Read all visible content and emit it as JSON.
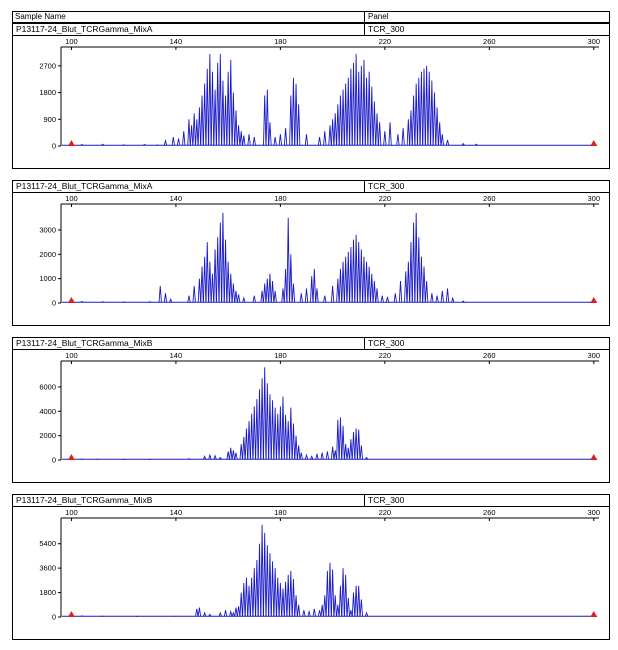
{
  "header": {
    "sample_col": "Sample Name",
    "panel_col": "Panel"
  },
  "colors": {
    "trace": "#1a1ac8",
    "marker": "#e02020",
    "axis": "#000000"
  },
  "chart_data": [
    {
      "type": "line",
      "sample": "P13117-24_Blut_TCRGamma_MixA",
      "panel": "TCR_300",
      "x_ticks": [
        100,
        140,
        180,
        220,
        260,
        300
      ],
      "y_ticks": [
        0,
        900,
        1800,
        2700
      ],
      "xlim": [
        96,
        302
      ],
      "ylim": [
        0,
        3200
      ],
      "size_markers": [
        100,
        300
      ],
      "peaks": [
        [
          104,
          50
        ],
        [
          112,
          60
        ],
        [
          120,
          40
        ],
        [
          128,
          50
        ],
        [
          133,
          30
        ],
        [
          136,
          180
        ],
        [
          139,
          300
        ],
        [
          141,
          250
        ],
        [
          143,
          500
        ],
        [
          145,
          900
        ],
        [
          146,
          700
        ],
        [
          147,
          1100
        ],
        [
          148,
          900
        ],
        [
          149,
          1300
        ],
        [
          150,
          1700
        ],
        [
          151,
          2100
        ],
        [
          152,
          2600
        ],
        [
          153,
          3100
        ],
        [
          154,
          2500
        ],
        [
          155,
          1900
        ],
        [
          156,
          2800
        ],
        [
          157,
          3100
        ],
        [
          158,
          2200
        ],
        [
          159,
          1700
        ],
        [
          160,
          2500
        ],
        [
          161,
          2900
        ],
        [
          162,
          1800
        ],
        [
          163,
          1200
        ],
        [
          164,
          700
        ],
        [
          165,
          500
        ],
        [
          166,
          350
        ],
        [
          168,
          400
        ],
        [
          170,
          300
        ],
        [
          174,
          1700
        ],
        [
          175,
          1900
        ],
        [
          176,
          800
        ],
        [
          178,
          300
        ],
        [
          180,
          400
        ],
        [
          182,
          600
        ],
        [
          184,
          1700
        ],
        [
          185,
          2300
        ],
        [
          186,
          2100
        ],
        [
          187,
          1400
        ],
        [
          190,
          400
        ],
        [
          195,
          300
        ],
        [
          197,
          500
        ],
        [
          199,
          700
        ],
        [
          200,
          900
        ],
        [
          201,
          1100
        ],
        [
          202,
          1400
        ],
        [
          203,
          1700
        ],
        [
          204,
          1900
        ],
        [
          205,
          2100
        ],
        [
          206,
          2300
        ],
        [
          207,
          2600
        ],
        [
          208,
          2800
        ],
        [
          209,
          3100
        ],
        [
          210,
          2500
        ],
        [
          211,
          2700
        ],
        [
          212,
          2900
        ],
        [
          213,
          2300
        ],
        [
          214,
          2500
        ],
        [
          215,
          2000
        ],
        [
          216,
          1500
        ],
        [
          217,
          1100
        ],
        [
          218,
          800
        ],
        [
          220,
          500
        ],
        [
          222,
          800
        ],
        [
          225,
          400
        ],
        [
          227,
          600
        ],
        [
          229,
          900
        ],
        [
          230,
          1200
        ],
        [
          231,
          1700
        ],
        [
          232,
          2100
        ],
        [
          233,
          2300
        ],
        [
          234,
          2500
        ],
        [
          235,
          2600
        ],
        [
          236,
          2700
        ],
        [
          237,
          2500
        ],
        [
          238,
          2200
        ],
        [
          239,
          1800
        ],
        [
          240,
          1300
        ],
        [
          241,
          800
        ],
        [
          242,
          400
        ],
        [
          244,
          200
        ],
        [
          250,
          80
        ],
        [
          255,
          60
        ]
      ]
    },
    {
      "type": "line",
      "sample": "P13117-24_Blut_TCRGamma_MixA",
      "panel": "TCR_300",
      "x_ticks": [
        100,
        140,
        180,
        220,
        260,
        300
      ],
      "y_ticks": [
        0,
        1000,
        2000,
        3000
      ],
      "xlim": [
        96,
        302
      ],
      "ylim": [
        0,
        3900
      ],
      "size_markers": [
        100,
        300
      ],
      "peaks": [
        [
          104,
          60
        ],
        [
          112,
          50
        ],
        [
          120,
          40
        ],
        [
          130,
          50
        ],
        [
          134,
          700
        ],
        [
          136,
          400
        ],
        [
          138,
          150
        ],
        [
          145,
          300
        ],
        [
          147,
          700
        ],
        [
          149,
          1000
        ],
        [
          150,
          1500
        ],
        [
          151,
          1900
        ],
        [
          152,
          2500
        ],
        [
          153,
          1700
        ],
        [
          154,
          1200
        ],
        [
          155,
          2200
        ],
        [
          156,
          2700
        ],
        [
          157,
          3300
        ],
        [
          158,
          3700
        ],
        [
          159,
          2600
        ],
        [
          160,
          1700
        ],
        [
          161,
          1200
        ],
        [
          162,
          800
        ],
        [
          163,
          500
        ],
        [
          164,
          350
        ],
        [
          166,
          200
        ],
        [
          170,
          300
        ],
        [
          173,
          500
        ],
        [
          174,
          800
        ],
        [
          175,
          1000
        ],
        [
          176,
          1200
        ],
        [
          177,
          900
        ],
        [
          178,
          500
        ],
        [
          181,
          600
        ],
        [
          182,
          1400
        ],
        [
          183,
          3500
        ],
        [
          184,
          2000
        ],
        [
          185,
          800
        ],
        [
          188,
          400
        ],
        [
          190,
          600
        ],
        [
          192,
          1100
        ],
        [
          193,
          1400
        ],
        [
          194,
          600
        ],
        [
          197,
          300
        ],
        [
          200,
          700
        ],
        [
          202,
          1000
        ],
        [
          203,
          1400
        ],
        [
          204,
          1700
        ],
        [
          205,
          1900
        ],
        [
          206,
          2100
        ],
        [
          207,
          2300
        ],
        [
          208,
          2600
        ],
        [
          209,
          2800
        ],
        [
          210,
          2500
        ],
        [
          211,
          2200
        ],
        [
          212,
          1900
        ],
        [
          213,
          1700
        ],
        [
          214,
          1500
        ],
        [
          215,
          1200
        ],
        [
          216,
          900
        ],
        [
          217,
          600
        ],
        [
          219,
          300
        ],
        [
          221,
          250
        ],
        [
          224,
          400
        ],
        [
          226,
          900
        ],
        [
          228,
          1300
        ],
        [
          229,
          1700
        ],
        [
          230,
          2500
        ],
        [
          231,
          3300
        ],
        [
          232,
          3700
        ],
        [
          233,
          2700
        ],
        [
          234,
          1900
        ],
        [
          235,
          1500
        ],
        [
          236,
          900
        ],
        [
          238,
          400
        ],
        [
          240,
          300
        ],
        [
          242,
          500
        ],
        [
          244,
          600
        ],
        [
          246,
          200
        ],
        [
          250,
          80
        ]
      ]
    },
    {
      "type": "line",
      "sample": "P13117-24_Blut_TCRGamma_MixB",
      "panel": "TCR_300",
      "x_ticks": [
        100,
        140,
        180,
        220,
        260,
        300
      ],
      "y_ticks": [
        0,
        2000,
        4000,
        6000
      ],
      "xlim": [
        96,
        302
      ],
      "ylim": [
        0,
        7800
      ],
      "size_markers": [
        100,
        300
      ],
      "peaks": [
        [
          104,
          80
        ],
        [
          110,
          60
        ],
        [
          120,
          40
        ],
        [
          130,
          40
        ],
        [
          145,
          100
        ],
        [
          151,
          300
        ],
        [
          153,
          400
        ],
        [
          155,
          350
        ],
        [
          157,
          200
        ],
        [
          160,
          700
        ],
        [
          161,
          1000
        ],
        [
          162,
          800
        ],
        [
          163,
          600
        ],
        [
          165,
          1300
        ],
        [
          166,
          1900
        ],
        [
          167,
          2600
        ],
        [
          168,
          3200
        ],
        [
          169,
          3800
        ],
        [
          170,
          4400
        ],
        [
          171,
          5000
        ],
        [
          172,
          5800
        ],
        [
          173,
          6700
        ],
        [
          174,
          7600
        ],
        [
          175,
          6300
        ],
        [
          176,
          5400
        ],
        [
          177,
          4900
        ],
        [
          178,
          4300
        ],
        [
          179,
          3800
        ],
        [
          180,
          4400
        ],
        [
          181,
          5200
        ],
        [
          182,
          3700
        ],
        [
          183,
          3200
        ],
        [
          184,
          4300
        ],
        [
          185,
          3000
        ],
        [
          186,
          2000
        ],
        [
          187,
          1200
        ],
        [
          188,
          600
        ],
        [
          190,
          400
        ],
        [
          192,
          300
        ],
        [
          194,
          500
        ],
        [
          196,
          600
        ],
        [
          198,
          700
        ],
        [
          200,
          1100
        ],
        [
          201,
          800
        ],
        [
          202,
          3300
        ],
        [
          203,
          3500
        ],
        [
          204,
          2800
        ],
        [
          205,
          1300
        ],
        [
          206,
          1000
        ],
        [
          207,
          1700
        ],
        [
          208,
          2300
        ],
        [
          209,
          2600
        ],
        [
          210,
          2500
        ],
        [
          211,
          1200
        ],
        [
          213,
          200
        ]
      ]
    },
    {
      "type": "line",
      "sample": "P13117-24_Blut_TCRGamma_MixB",
      "panel": "TCR_300",
      "x_ticks": [
        100,
        140,
        180,
        220,
        260,
        300
      ],
      "y_ticks": [
        0,
        1800,
        3600,
        5400
      ],
      "xlim": [
        96,
        302
      ],
      "ylim": [
        0,
        7000
      ],
      "size_markers": [
        100,
        300
      ],
      "peaks": [
        [
          104,
          80
        ],
        [
          112,
          50
        ],
        [
          125,
          40
        ],
        [
          140,
          50
        ],
        [
          148,
          600
        ],
        [
          149,
          700
        ],
        [
          151,
          300
        ],
        [
          153,
          200
        ],
        [
          157,
          300
        ],
        [
          159,
          500
        ],
        [
          161,
          400
        ],
        [
          162,
          300
        ],
        [
          163,
          700
        ],
        [
          164,
          800
        ],
        [
          165,
          1800
        ],
        [
          166,
          2500
        ],
        [
          167,
          2900
        ],
        [
          168,
          2300
        ],
        [
          169,
          2900
        ],
        [
          170,
          3600
        ],
        [
          171,
          4200
        ],
        [
          172,
          5400
        ],
        [
          173,
          6800
        ],
        [
          174,
          6200
        ],
        [
          175,
          5300
        ],
        [
          176,
          4700
        ],
        [
          177,
          4100
        ],
        [
          178,
          3600
        ],
        [
          179,
          2900
        ],
        [
          180,
          2500
        ],
        [
          181,
          2100
        ],
        [
          182,
          2600
        ],
        [
          183,
          3100
        ],
        [
          184,
          3400
        ],
        [
          185,
          2800
        ],
        [
          186,
          1600
        ],
        [
          187,
          900
        ],
        [
          189,
          500
        ],
        [
          191,
          400
        ],
        [
          193,
          600
        ],
        [
          195,
          500
        ],
        [
          196,
          900
        ],
        [
          197,
          1600
        ],
        [
          198,
          3400
        ],
        [
          199,
          4000
        ],
        [
          200,
          3500
        ],
        [
          201,
          1600
        ],
        [
          202,
          900
        ],
        [
          203,
          2300
        ],
        [
          204,
          3600
        ],
        [
          205,
          3100
        ],
        [
          206,
          1400
        ],
        [
          207,
          500
        ],
        [
          208,
          1800
        ],
        [
          209,
          2300
        ],
        [
          210,
          2300
        ],
        [
          211,
          1300
        ],
        [
          213,
          300
        ]
      ]
    }
  ]
}
